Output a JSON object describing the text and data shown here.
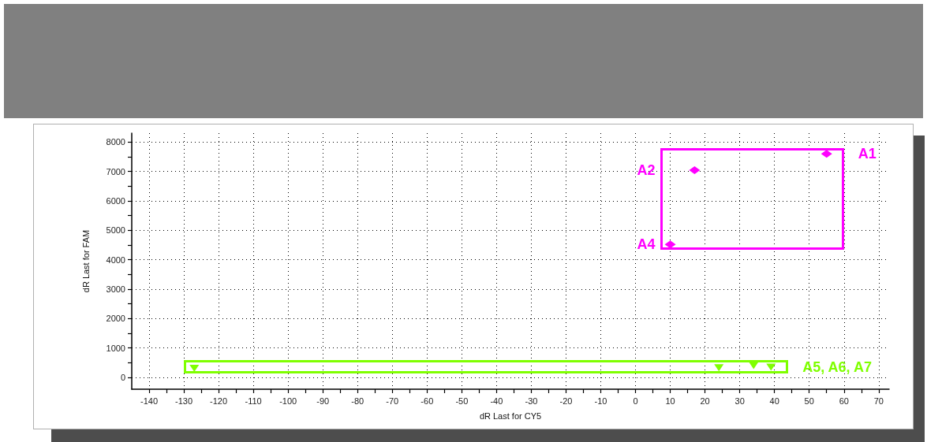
{
  "chart_data": {
    "type": "scatter",
    "xlabel": "dR Last for CY5",
    "ylabel": "dR Last for FAM",
    "series": [
      {
        "name": "A1",
        "color": "#ff00ff",
        "marker": "diamond",
        "x": [
          55
        ],
        "values": [
          7600
        ]
      },
      {
        "name": "A2",
        "color": "#ff00ff",
        "marker": "diamond",
        "x": [
          17
        ],
        "values": [
          7040
        ]
      },
      {
        "name": "A4",
        "color": "#ff00ff",
        "marker": "diamond",
        "x": [
          10
        ],
        "values": [
          4520
        ]
      },
      {
        "name": "A5, A6, A7",
        "color": "#7fff00",
        "marker": "triangle",
        "x": [
          -127,
          24,
          34,
          39
        ],
        "values": [
          310,
          330,
          400,
          350
        ]
      }
    ],
    "xlim": [
      -145,
      73
    ],
    "ylim": [
      -400,
      8300
    ],
    "xticks": [
      -140,
      {
        "value": -135,
        "label": null
      },
      -130,
      {
        "value": -125,
        "label": null
      },
      -120,
      {
        "value": -115,
        "label": null
      },
      -110,
      {
        "value": -105,
        "label": null
      },
      -100,
      {
        "value": -95,
        "label": null
      },
      -90,
      {
        "value": -85,
        "label": null
      },
      -80,
      {
        "value": -75,
        "label": null
      },
      -70,
      {
        "value": -65,
        "label": null
      },
      -60,
      {
        "value": -55,
        "label": null
      },
      -50,
      {
        "value": -45,
        "label": null
      },
      -40,
      {
        "value": -35,
        "label": null
      },
      -30,
      {
        "value": -25,
        "label": null
      },
      -20,
      {
        "value": -15,
        "label": null
      },
      -10,
      {
        "value": -5,
        "label": null
      },
      0,
      {
        "value": 5,
        "label": null
      },
      10,
      {
        "value": 15,
        "label": null
      },
      20,
      {
        "value": 25,
        "label": null
      },
      30,
      {
        "value": 35,
        "label": null
      },
      40,
      {
        "value": 45,
        "label": null
      },
      50,
      {
        "value": 55,
        "label": null
      },
      60,
      {
        "value": 65,
        "label": null
      },
      70
    ],
    "yticks": [
      0,
      {
        "value": 500,
        "label": null
      },
      1000,
      {
        "value": 1500,
        "label": null
      },
      2000,
      {
        "value": 2500,
        "label": null
      },
      3000,
      {
        "value": 3500,
        "label": null
      },
      4000,
      {
        "value": 4500,
        "label": null
      },
      5000,
      {
        "value": 5500,
        "label": null
      },
      6000,
      {
        "value": 6500,
        "label": null
      },
      7000,
      {
        "value": 7500,
        "label": null
      },
      8000
    ],
    "grid": true
  }
}
